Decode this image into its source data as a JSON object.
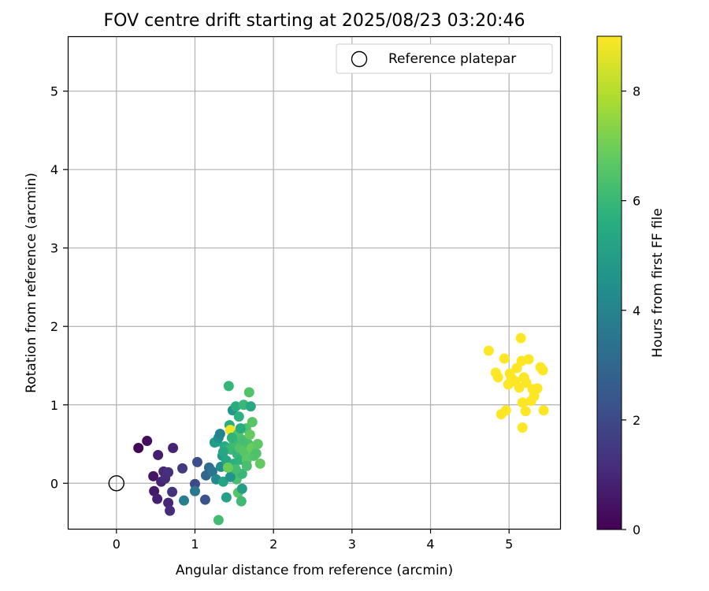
{
  "chart_data": {
    "type": "scatter",
    "title": "FOV centre drift starting at 2025/08/23 03:20:46",
    "xlabel": "Angular distance from reference (arcmin)",
    "ylabel": "Rotation from reference (arcmin)",
    "xlim": [
      -0.62,
      5.65
    ],
    "ylim": [
      -0.58,
      5.7
    ],
    "xticks": [
      0,
      1,
      2,
      3,
      4,
      5
    ],
    "yticks": [
      0,
      1,
      2,
      3,
      4,
      5
    ],
    "grid": true,
    "legend": {
      "placement": "top-right",
      "entries": [
        "Reference platepar"
      ]
    },
    "colorbar": {
      "label": "Hours from first FF file",
      "range": [
        0,
        9
      ],
      "ticks": [
        0,
        2,
        4,
        6,
        8
      ],
      "colormap": "viridis"
    },
    "reference_point": {
      "x": 0,
      "y": 0,
      "label": "Reference platepar"
    },
    "points": [
      {
        "x": 0.28,
        "y": 0.45,
        "t": 0.1
      },
      {
        "x": 0.39,
        "y": 0.54,
        "t": 0.3
      },
      {
        "x": 0.47,
        "y": 0.09,
        "t": 0.5
      },
      {
        "x": 0.53,
        "y": 0.36,
        "t": 0.7
      },
      {
        "x": 0.48,
        "y": -0.1,
        "t": 0.6
      },
      {
        "x": 0.52,
        "y": -0.2,
        "t": 0.8
      },
      {
        "x": 0.57,
        "y": 0.02,
        "t": 0.9
      },
      {
        "x": 0.6,
        "y": 0.15,
        "t": 1.0
      },
      {
        "x": 0.62,
        "y": 0.06,
        "t": 1.1
      },
      {
        "x": 0.66,
        "y": 0.14,
        "t": 1.2
      },
      {
        "x": 0.66,
        "y": -0.25,
        "t": 1.0
      },
      {
        "x": 0.68,
        "y": -0.35,
        "t": 1.1
      },
      {
        "x": 0.71,
        "y": -0.11,
        "t": 1.3
      },
      {
        "x": 0.72,
        "y": 0.45,
        "t": 0.9
      },
      {
        "x": 0.84,
        "y": 0.19,
        "t": 1.5
      },
      {
        "x": 0.86,
        "y": -0.22,
        "t": 3.8
      },
      {
        "x": 1.0,
        "y": -0.01,
        "t": 2.0
      },
      {
        "x": 1.0,
        "y": -0.1,
        "t": 3.6
      },
      {
        "x": 1.03,
        "y": 0.27,
        "t": 2.1
      },
      {
        "x": 1.13,
        "y": -0.21,
        "t": 2.3
      },
      {
        "x": 1.14,
        "y": 0.1,
        "t": 3.0
      },
      {
        "x": 1.18,
        "y": 0.2,
        "t": 3.2
      },
      {
        "x": 1.22,
        "y": 0.15,
        "t": 3.4
      },
      {
        "x": 1.25,
        "y": 0.52,
        "t": 4.8
      },
      {
        "x": 1.27,
        "y": 0.05,
        "t": 4.2
      },
      {
        "x": 1.28,
        "y": 0.53,
        "t": 5.0
      },
      {
        "x": 1.3,
        "y": 0.58,
        "t": 4.5
      },
      {
        "x": 1.32,
        "y": 0.63,
        "t": 4.0
      },
      {
        "x": 1.3,
        "y": -0.47,
        "t": 6.2
      },
      {
        "x": 1.33,
        "y": 0.21,
        "t": 4.4
      },
      {
        "x": 1.35,
        "y": 0.35,
        "t": 4.9
      },
      {
        "x": 1.36,
        "y": 0.02,
        "t": 5.2
      },
      {
        "x": 1.38,
        "y": 0.47,
        "t": 5.5
      },
      {
        "x": 1.4,
        "y": -0.18,
        "t": 5.1
      },
      {
        "x": 1.4,
        "y": 0.29,
        "t": 5.3
      },
      {
        "x": 1.42,
        "y": 0.44,
        "t": 5.8
      },
      {
        "x": 1.43,
        "y": 1.24,
        "t": 5.9
      },
      {
        "x": 1.44,
        "y": 0.74,
        "t": 5.6
      },
      {
        "x": 1.45,
        "y": 0.68,
        "t": 8.8
      },
      {
        "x": 1.46,
        "y": 0.43,
        "t": 6.0
      },
      {
        "x": 1.47,
        "y": 0.12,
        "t": 5.4
      },
      {
        "x": 1.48,
        "y": 0.93,
        "t": 4.7
      },
      {
        "x": 1.5,
        "y": 0.25,
        "t": 5.7
      },
      {
        "x": 1.5,
        "y": 0.52,
        "t": 6.1
      },
      {
        "x": 1.52,
        "y": 0.98,
        "t": 5.6
      },
      {
        "x": 1.53,
        "y": 0.05,
        "t": 6.3
      },
      {
        "x": 1.54,
        "y": 0.37,
        "t": 5.9
      },
      {
        "x": 1.55,
        "y": 0.63,
        "t": 6.4
      },
      {
        "x": 1.55,
        "y": -0.12,
        "t": 6.6
      },
      {
        "x": 1.56,
        "y": 0.85,
        "t": 5.7
      },
      {
        "x": 1.57,
        "y": 0.45,
        "t": 6.5
      },
      {
        "x": 1.58,
        "y": 0.3,
        "t": 5.8
      },
      {
        "x": 1.59,
        "y": -0.23,
        "t": 6.1
      },
      {
        "x": 1.6,
        "y": 0.12,
        "t": 6.0
      },
      {
        "x": 1.6,
        "y": -0.07,
        "t": 5.0
      },
      {
        "x": 1.61,
        "y": 0.55,
        "t": 6.2
      },
      {
        "x": 1.62,
        "y": 1.0,
        "t": 6.0
      },
      {
        "x": 1.63,
        "y": 0.4,
        "t": 6.6
      },
      {
        "x": 1.65,
        "y": 0.7,
        "t": 6.4
      },
      {
        "x": 1.66,
        "y": 0.3,
        "t": 6.7
      },
      {
        "x": 1.68,
        "y": 0.5,
        "t": 6.3
      },
      {
        "x": 1.69,
        "y": 1.16,
        "t": 6.5
      },
      {
        "x": 1.7,
        "y": 0.62,
        "t": 6.8
      },
      {
        "x": 1.71,
        "y": 0.98,
        "t": 5.4
      },
      {
        "x": 1.72,
        "y": 0.45,
        "t": 6.9
      },
      {
        "x": 1.73,
        "y": 0.78,
        "t": 6.6
      },
      {
        "x": 1.75,
        "y": 0.35,
        "t": 6.5
      },
      {
        "x": 1.78,
        "y": 0.38,
        "t": 6.4
      },
      {
        "x": 1.8,
        "y": 0.5,
        "t": 6.7
      },
      {
        "x": 1.83,
        "y": 0.25,
        "t": 6.8
      },
      {
        "x": 1.45,
        "y": 0.08,
        "t": 4.6
      },
      {
        "x": 1.36,
        "y": 0.4,
        "t": 5.3
      },
      {
        "x": 1.47,
        "y": 0.58,
        "t": 5.8
      },
      {
        "x": 1.52,
        "y": 0.18,
        "t": 6.2
      },
      {
        "x": 1.58,
        "y": 0.7,
        "t": 5.5
      },
      {
        "x": 1.42,
        "y": 0.2,
        "t": 6.9
      },
      {
        "x": 1.66,
        "y": 0.22,
        "t": 6.3
      },
      {
        "x": 4.74,
        "y": 1.69,
        "t": 9.0
      },
      {
        "x": 4.83,
        "y": 1.41,
        "t": 9.0
      },
      {
        "x": 4.86,
        "y": 1.35,
        "t": 9.0
      },
      {
        "x": 4.9,
        "y": 0.88,
        "t": 9.0
      },
      {
        "x": 4.94,
        "y": 1.59,
        "t": 9.0
      },
      {
        "x": 4.96,
        "y": 0.93,
        "t": 9.0
      },
      {
        "x": 4.99,
        "y": 1.26,
        "t": 9.0
      },
      {
        "x": 5.01,
        "y": 1.4,
        "t": 9.0
      },
      {
        "x": 5.03,
        "y": 1.34,
        "t": 9.0
      },
      {
        "x": 5.08,
        "y": 1.3,
        "t": 9.0
      },
      {
        "x": 5.1,
        "y": 1.47,
        "t": 9.0
      },
      {
        "x": 5.13,
        "y": 1.22,
        "t": 9.0
      },
      {
        "x": 5.15,
        "y": 1.85,
        "t": 9.0
      },
      {
        "x": 5.16,
        "y": 1.56,
        "t": 9.0
      },
      {
        "x": 5.17,
        "y": 1.03,
        "t": 9.0
      },
      {
        "x": 5.17,
        "y": 0.71,
        "t": 9.0
      },
      {
        "x": 5.19,
        "y": 1.35,
        "t": 9.0
      },
      {
        "x": 5.21,
        "y": 0.92,
        "t": 9.0
      },
      {
        "x": 5.22,
        "y": 1.28,
        "t": 9.0
      },
      {
        "x": 5.25,
        "y": 1.58,
        "t": 9.0
      },
      {
        "x": 5.28,
        "y": 1.05,
        "t": 9.0
      },
      {
        "x": 5.3,
        "y": 1.2,
        "t": 9.0
      },
      {
        "x": 5.32,
        "y": 1.11,
        "t": 9.0
      },
      {
        "x": 5.36,
        "y": 1.21,
        "t": 9.0
      },
      {
        "x": 5.4,
        "y": 1.48,
        "t": 9.0
      },
      {
        "x": 5.43,
        "y": 1.44,
        "t": 9.0
      },
      {
        "x": 5.44,
        "y": 0.93,
        "t": 9.0
      }
    ]
  }
}
